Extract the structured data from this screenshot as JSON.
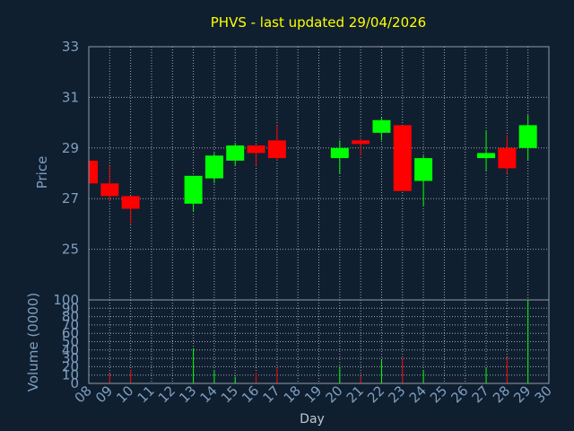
{
  "chart_data": [
    {
      "type": "candlestick",
      "title": "PHVS - last updated 29/04/2026",
      "ylabel": "Price",
      "ylim": [
        23,
        33
      ],
      "yticks": [
        "33",
        "31",
        "29",
        "27",
        "25"
      ],
      "grid": true,
      "colors": {
        "up": "#00ff00",
        "down": "#ff0000",
        "background": "#0f1f30",
        "text": "#7f9fbf",
        "title": "#ffff00"
      },
      "candles": [
        {
          "day": "08",
          "open": 28.5,
          "close": 27.6,
          "high": 28.5,
          "low": 27.6
        },
        {
          "day": "09",
          "open": 27.6,
          "close": 27.1,
          "high": 28.3,
          "low": 26.9
        },
        {
          "day": "10",
          "open": 27.1,
          "close": 26.6,
          "high": 27.1,
          "low": 26.0
        },
        {
          "day": "13",
          "open": 26.8,
          "close": 27.9,
          "high": 27.9,
          "low": 26.5
        },
        {
          "day": "14",
          "open": 27.8,
          "close": 28.7,
          "high": 28.8,
          "low": 27.6
        },
        {
          "day": "15",
          "open": 28.5,
          "close": 29.1,
          "high": 29.2,
          "low": 28.3
        },
        {
          "day": "16",
          "open": 29.1,
          "close": 28.8,
          "high": 29.1,
          "low": 28.3
        },
        {
          "day": "17",
          "open": 29.3,
          "close": 28.6,
          "high": 29.9,
          "low": 28.5
        },
        {
          "day": "20",
          "open": 28.6,
          "close": 29.0,
          "high": 29.3,
          "low": 28.0
        },
        {
          "day": "21",
          "open": 29.3,
          "close": 29.2,
          "high": 29.4,
          "low": 28.7
        },
        {
          "day": "22",
          "open": 29.6,
          "close": 30.1,
          "high": 30.2,
          "low": 29.3
        },
        {
          "day": "23",
          "open": 29.9,
          "close": 27.3,
          "high": 29.9,
          "low": 27.3
        },
        {
          "day": "24",
          "open": 27.7,
          "close": 28.6,
          "high": 28.7,
          "low": 26.7
        },
        {
          "day": "27",
          "open": 28.6,
          "close": 28.8,
          "high": 29.7,
          "low": 28.1
        },
        {
          "day": "28",
          "open": 29.0,
          "close": 28.2,
          "high": 29.5,
          "low": 28.0
        },
        {
          "day": "29",
          "open": 29.0,
          "close": 29.9,
          "high": 30.3,
          "low": 28.5
        }
      ]
    },
    {
      "type": "bar",
      "ylabel": "Volume (0000)",
      "xlabel": "Day",
      "ylim": [
        0,
        100
      ],
      "yticks": [
        "100",
        "90",
        "80",
        "70",
        "60",
        "50",
        "40",
        "30",
        "20",
        "10",
        "0"
      ],
      "categories": [
        "08",
        "09",
        "10",
        "11",
        "12",
        "13",
        "14",
        "15",
        "16",
        "17",
        "18",
        "19",
        "20",
        "21",
        "22",
        "23",
        "24",
        "25",
        "26",
        "27",
        "28",
        "29",
        "30"
      ],
      "bars": [
        {
          "day": "08",
          "value": 2,
          "direction": "down"
        },
        {
          "day": "09",
          "value": 12,
          "direction": "down"
        },
        {
          "day": "10",
          "value": 16,
          "direction": "down"
        },
        {
          "day": "13",
          "value": 42,
          "direction": "up"
        },
        {
          "day": "14",
          "value": 15,
          "direction": "up"
        },
        {
          "day": "15",
          "value": 8,
          "direction": "up"
        },
        {
          "day": "16",
          "value": 13,
          "direction": "down"
        },
        {
          "day": "17",
          "value": 19,
          "direction": "down"
        },
        {
          "day": "20",
          "value": 20,
          "direction": "up"
        },
        {
          "day": "21",
          "value": 9,
          "direction": "down"
        },
        {
          "day": "22",
          "value": 28,
          "direction": "up"
        },
        {
          "day": "23",
          "value": 30,
          "direction": "down"
        },
        {
          "day": "24",
          "value": 16,
          "direction": "up"
        },
        {
          "day": "27",
          "value": 19,
          "direction": "up"
        },
        {
          "day": "28",
          "value": 31,
          "direction": "down"
        },
        {
          "day": "29",
          "value": 100,
          "direction": "up"
        }
      ]
    }
  ]
}
